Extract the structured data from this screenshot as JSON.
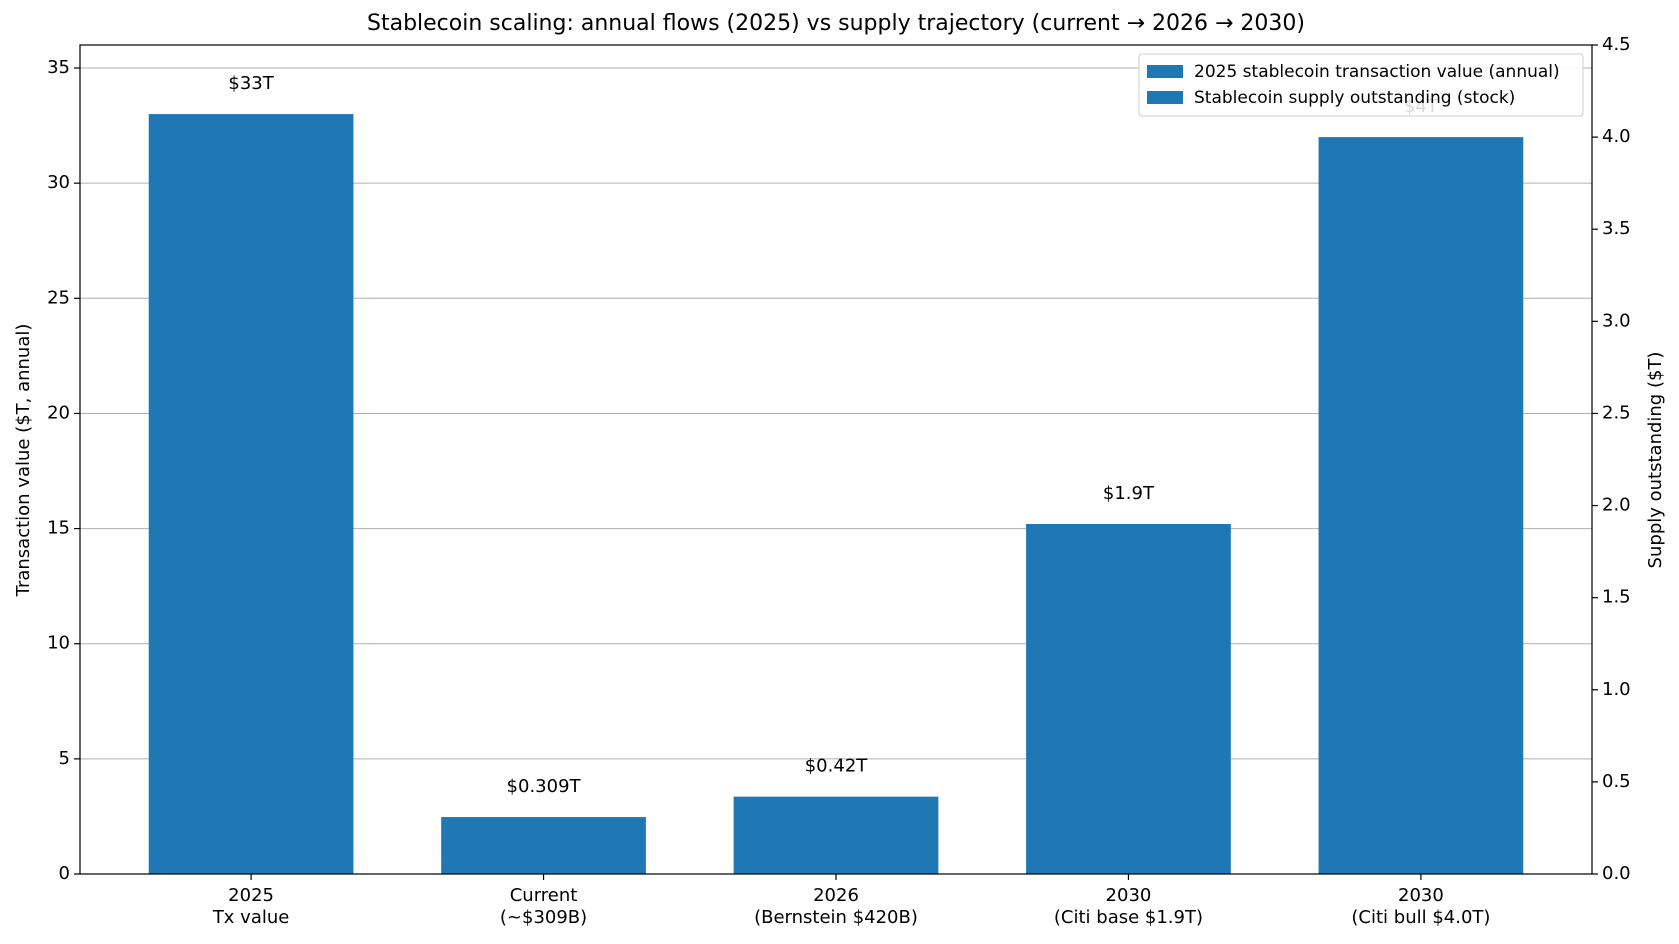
{
  "chart_data": {
    "type": "bar",
    "title": "Stablecoin scaling: annual flows (2025) vs supply trajectory (current → 2026 → 2030)",
    "categories": [
      "2025\nTx value",
      "Current\n(~$309B)",
      "2026\n(Bernstein $420B)",
      "2030\n(Citi base $1.9T)",
      "2030\n(Citi bull $4.0T)"
    ],
    "y_label": "Transaction value ($T, annual)",
    "y2_label": "Supply outstanding ($T)",
    "ylim": [
      0,
      36
    ],
    "yticks": [
      0,
      5,
      10,
      15,
      20,
      25,
      30,
      35
    ],
    "y2lim": [
      0,
      4.5
    ],
    "y2ticks": [
      {
        "value": 0,
        "label": "0.0"
      },
      0.5,
      {
        "value": 1,
        "label": "1.0"
      },
      1.5,
      {
        "value": 2,
        "label": "2.0"
      },
      2.5,
      {
        "value": 3,
        "label": "3.0"
      },
      3.5,
      {
        "value": 4,
        "label": "4.0"
      },
      4.5
    ],
    "grid": true,
    "legend": "upper right",
    "series": [
      {
        "name": "2025 stablecoin transaction value (annual)",
        "color": "#1f77b4",
        "values": [
          33,
          null,
          null,
          null,
          null
        ],
        "value_labels": [
          "$33T",
          null,
          null,
          null,
          null
        ]
      },
      {
        "name": "Stablecoin supply outstanding (stock)",
        "color": "#1f77b4",
        "axis": "y2",
        "values": [
          null,
          0.309,
          0.42,
          1.9,
          4.0
        ],
        "value_labels": [
          null,
          "$0.309T",
          "$0.42T",
          "$1.9T",
          "$4T"
        ]
      }
    ]
  }
}
